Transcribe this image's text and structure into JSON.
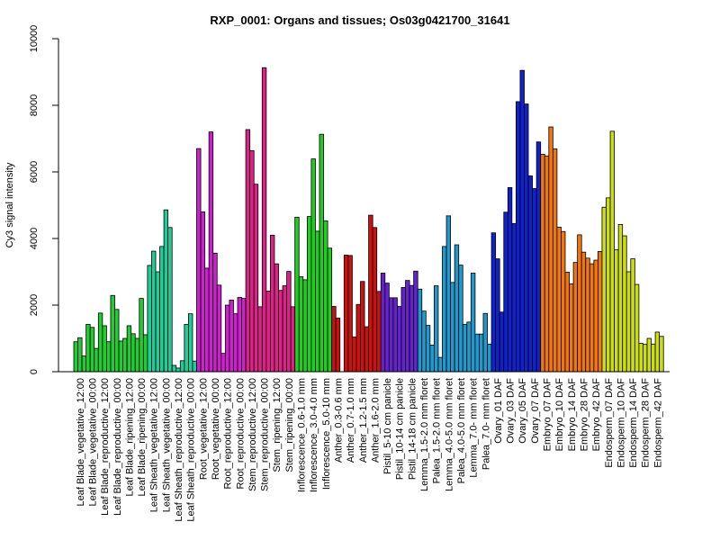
{
  "chart_data": {
    "type": "bar",
    "title": "RXP_0001: Organs and tissues; Os03g0421700_31641",
    "xlabel": "",
    "ylabel": "Cy3 signal intensity",
    "ylim": [
      0,
      10000
    ],
    "yticks": [
      0,
      2000,
      4000,
      6000,
      8000,
      10000
    ],
    "grid": false,
    "tick_labels": [
      "Leaf Blade_vegetative_12:00",
      "Leaf Blade_vegetative_00:00",
      "Leaf Blade_reproductive_12:00",
      "Leaf Blade_reproductive_00:00",
      "Leaf Blade_ripening_12:00",
      "Leaf Blade_ripening_00:00",
      "Leaf Sheath_vegetative_12:00",
      "Leaf Sheath_vegetative_00:00",
      "Leaf Sheath_reproductive_12:00",
      "Leaf Sheath_reproductive_00:00",
      "Root_vegetative_12:00",
      "Root_vegetative_00:00",
      "Root_reproductive_12:00",
      "Root_reproductive_00:00",
      "Stem_reproductive_12:00",
      "Stem_reproductive_00:00",
      "Stem_ripening_12:00",
      "Stem_ripening_00:00",
      "Inflorescence_0.6-1.0 mm",
      "Inflorescence_3.0-4.0 mm",
      "Inflorescence_5.0-10 mm",
      "Anther_0.3-0.6 mm",
      "Anther_0.7-1.0 mm",
      "Anther_1.2-1.5 mm",
      "Anther_1.6-2.0 mm",
      "Pistil_5-10 cm panicle",
      "Pistil_10-14 cm panicle",
      "Pistil_14-18 cm panicle",
      "Lemma_1.5-2.0 mm floret",
      "Palea_1.5-2.0 mm floret",
      "Lemma_4.0-5.0 mm floret",
      "Palea_4.0-5.0 mm floret",
      "Lemma_7.0- mm floret",
      "Palea_7.0- mm floret",
      "Ovary_01 DAF",
      "Ovary_03 DAF",
      "Ovary_05 DAF",
      "Ovary_07 DAF",
      "Embryo_07 DAF",
      "Embryo_10 DAF",
      "Embryo_14 DAF",
      "Embryo_28 DAF",
      "Embryo_42 DAF",
      "Endosperm_07 DAF",
      "Endosperm_10 DAF",
      "Endosperm_14 DAF",
      "Endosperm_28 DAF",
      "Endosperm_42 DAF"
    ],
    "bars": [
      {
        "values": [
          900,
          1020,
          470
        ],
        "color": "#22cc33"
      },
      {
        "values": [
          1420,
          1330,
          700
        ],
        "color": "#22cc33"
      },
      {
        "values": [
          1760,
          1380,
          900
        ],
        "color": "#22cc33"
      },
      {
        "values": [
          2290,
          1870,
          920
        ],
        "color": "#22cc33"
      },
      {
        "values": [
          1000,
          1380,
          1140
        ],
        "color": "#22cc33"
      },
      {
        "values": [
          1000,
          2200,
          1110
        ],
        "color": "#22cc33"
      },
      {
        "values": [
          3190,
          3620,
          3000
        ],
        "color": "#22cc99"
      },
      {
        "values": [
          3760,
          4860,
          4330
        ],
        "color": "#22cc99"
      },
      {
        "values": [
          190,
          110,
          330
        ],
        "color": "#22cc99"
      },
      {
        "values": [
          1420,
          1740,
          320
        ],
        "color": "#22cc99"
      },
      {
        "values": [
          6700,
          4800,
          3110
        ],
        "color": "#cc22cc"
      },
      {
        "values": [
          7200,
          3560,
          2600
        ],
        "color": "#cc22cc"
      },
      {
        "values": [
          550,
          2000,
          2150
        ],
        "color": "#cc22cc"
      },
      {
        "values": [
          1740,
          2230,
          2200
        ],
        "color": "#cc22cc"
      },
      {
        "values": [
          7270,
          6640,
          5630
        ],
        "color": "#dd2288"
      },
      {
        "values": [
          1950,
          9130,
          2420
        ],
        "color": "#dd2288"
      },
      {
        "values": [
          4100,
          3240,
          2440
        ],
        "color": "#dd2288"
      },
      {
        "values": [
          2580,
          3010,
          1950
        ],
        "color": "#dd2288"
      },
      {
        "values": [
          4640,
          2850,
          2760
        ],
        "color": "#22cc22"
      },
      {
        "values": [
          4660,
          6390,
          4220
        ],
        "color": "#22cc22"
      },
      {
        "values": [
          7130,
          4530,
          3710
        ],
        "color": "#22cc22"
      },
      {
        "values": [
          1960,
          1610
        ],
        "color": "#cc1111"
      },
      {
        "values": [
          3500,
          3490,
          1040
        ],
        "color": "#cc1111"
      },
      {
        "values": [
          2020,
          2710,
          1350
        ],
        "color": "#cc1111"
      },
      {
        "values": [
          4700,
          4330,
          2410
        ],
        "color": "#cc1111"
      },
      {
        "values": [
          2960,
          2660,
          2220
        ],
        "color": "#6622cc"
      },
      {
        "values": [
          2220,
          1960,
          2530
        ],
        "color": "#6622cc"
      },
      {
        "values": [
          2740,
          2590,
          3020
        ],
        "color": "#6622cc"
      },
      {
        "values": [
          2480,
          1820,
          1390
        ],
        "color": "#2299cc"
      },
      {
        "values": [
          800,
          2580,
          430
        ],
        "color": "#2299cc"
      },
      {
        "values": [
          3760,
          4680,
          2680
        ],
        "color": "#2299cc"
      },
      {
        "values": [
          3810,
          3200,
          1420
        ],
        "color": "#2299cc"
      },
      {
        "values": [
          1490,
          2960,
          1130
        ],
        "color": "#2299cc"
      },
      {
        "values": [
          1130,
          1750,
          830
        ],
        "color": "#2299cc"
      },
      {
        "values": [
          4170,
          3390,
          1790
        ],
        "color": "#1122cc"
      },
      {
        "values": [
          4790,
          5530,
          4450
        ],
        "color": "#1122cc"
      },
      {
        "values": [
          8110,
          9050,
          8040
        ],
        "color": "#1122cc"
      },
      {
        "values": [
          5880,
          5500,
          6900
        ],
        "color": "#1122cc"
      },
      {
        "values": [
          6530,
          6480,
          7350
        ],
        "color": "#ee7711"
      },
      {
        "values": [
          6690,
          4340,
          4210
        ],
        "color": "#ee7711"
      },
      {
        "values": [
          2990,
          2640,
          3280
        ],
        "color": "#ee7711"
      },
      {
        "values": [
          4110,
          3590,
          3410
        ],
        "color": "#ee7711"
      },
      {
        "values": [
          3240,
          3350,
          3610
        ],
        "color": "#ee7711"
      },
      {
        "values": [
          4940,
          5220,
          7220
        ],
        "color": "#ccdd11"
      },
      {
        "values": [
          3660,
          4420,
          4080
        ],
        "color": "#ccdd11"
      },
      {
        "values": [
          3000,
          3390,
          2620
        ],
        "color": "#ccdd11"
      },
      {
        "values": [
          850,
          820,
          1000
        ],
        "color": "#ccdd11"
      },
      {
        "values": [
          830,
          1190,
          1060
        ],
        "color": "#ccdd11"
      }
    ]
  }
}
